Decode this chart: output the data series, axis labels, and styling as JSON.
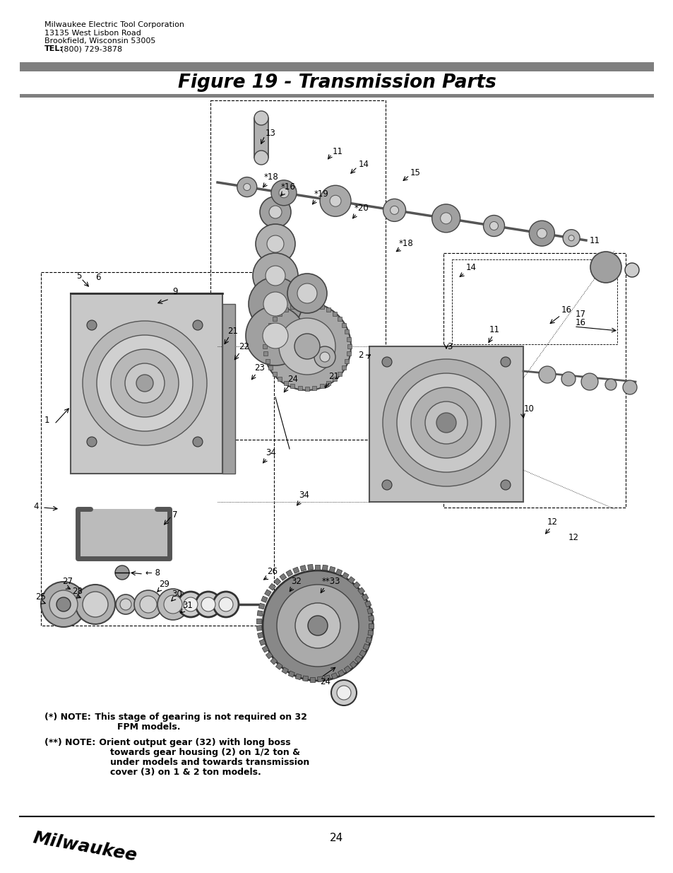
{
  "title": "Figure 19 - Transmission Parts",
  "header_lines": [
    "Milwaukee Electric Tool Corporation",
    "13135 West Lisbon Road",
    "Brookfield, Wisconsin 53005"
  ],
  "header_tel_bold": "TEL:",
  "header_tel_rest": "(800) 729-3878",
  "page_number": "24",
  "note1_label": "(*) NOTE:",
  "note1_line1": " This stage of gearing is not required on 32",
  "note1_line2": "FPM models.",
  "note2_label": "(**) NOTE:",
  "note2_line1": " Orient output gear (32) with long boss",
  "note2_line2": "towards gear housing (2) on 1/2 ton &",
  "note2_line3": "under models and towards transmission",
  "note2_line4": "cover (3) on 1 & 2 ton models.",
  "bar_color": "#7f7f7f",
  "background_color": "#ffffff",
  "title_fontsize": 19,
  "header_fontsize": 8.0,
  "note_fontsize": 9.0,
  "label_fontsize": 8.5,
  "page_fontsize": 11
}
